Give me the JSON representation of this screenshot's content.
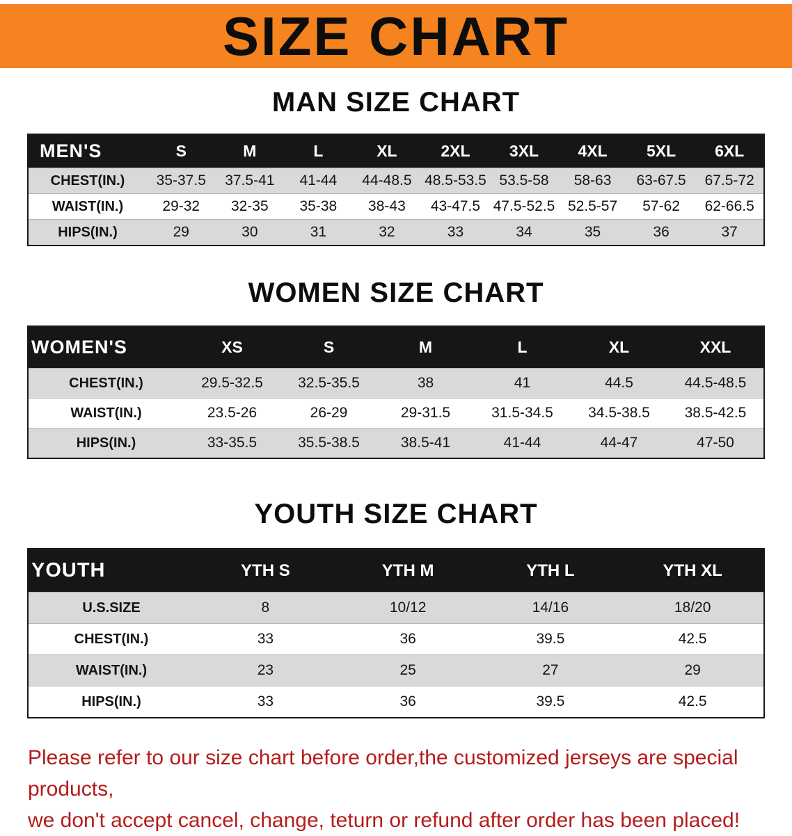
{
  "banner": {
    "title": "SIZE CHART"
  },
  "colors": {
    "banner_bg": "#f5831f",
    "table_header_bg": "#161616",
    "row_shade": "#d9d9d9",
    "disclaimer_text": "#b51c1c"
  },
  "sections": [
    {
      "heading": "MAN SIZE CHART",
      "header_label": "MEN'S",
      "columns": [
        "S",
        "M",
        "L",
        "XL",
        "2XL",
        "3XL",
        "4XL",
        "5XL",
        "6XL"
      ],
      "rows": [
        {
          "label": "CHEST(IN.)",
          "values": [
            "35-37.5",
            "37.5-41",
            "41-44",
            "44-48.5",
            "48.5-53.5",
            "53.5-58",
            "58-63",
            "63-67.5",
            "67.5-72"
          ]
        },
        {
          "label": "WAIST(IN.)",
          "values": [
            "29-32",
            "32-35",
            "35-38",
            "38-43",
            "43-47.5",
            "47.5-52.5",
            "52.5-57",
            "57-62",
            "62-66.5"
          ]
        },
        {
          "label": "HIPS(IN.)",
          "values": [
            "29",
            "30",
            "31",
            "32",
            "33",
            "34",
            "35",
            "36",
            "37"
          ]
        }
      ]
    },
    {
      "heading": "WOMEN SIZE CHART",
      "header_label": "WOMEN'S",
      "columns": [
        "XS",
        "S",
        "M",
        "L",
        "XL",
        "XXL"
      ],
      "rows": [
        {
          "label": "CHEST(IN.)",
          "values": [
            "29.5-32.5",
            "32.5-35.5",
            "38",
            "41",
            "44.5",
            "44.5-48.5"
          ]
        },
        {
          "label": "WAIST(IN.)",
          "values": [
            "23.5-26",
            "26-29",
            "29-31.5",
            "31.5-34.5",
            "34.5-38.5",
            "38.5-42.5"
          ]
        },
        {
          "label": "HIPS(IN.)",
          "values": [
            "33-35.5",
            "35.5-38.5",
            "38.5-41",
            "41-44",
            "44-47",
            "47-50"
          ]
        }
      ]
    },
    {
      "heading": "YOUTH SIZE CHART",
      "header_label": "YOUTH",
      "columns": [
        "YTH S",
        "YTH M",
        "YTH L",
        "YTH XL"
      ],
      "rows": [
        {
          "label": "U.S.SIZE",
          "values": [
            "8",
            "10/12",
            "14/16",
            "18/20"
          ]
        },
        {
          "label": "CHEST(IN.)",
          "values": [
            "33",
            "36",
            "39.5",
            "42.5"
          ]
        },
        {
          "label": "WAIST(IN.)",
          "values": [
            "23",
            "25",
            "27",
            "29"
          ]
        },
        {
          "label": "HIPS(IN.)",
          "values": [
            "33",
            "36",
            "39.5",
            "42.5"
          ]
        }
      ]
    }
  ],
  "disclaimer": {
    "line1": "Please refer to our size chart before order,the customized jerseys are special products,",
    "line2": "we don't accept cancel, change, teturn or refund after order has been placed!"
  }
}
